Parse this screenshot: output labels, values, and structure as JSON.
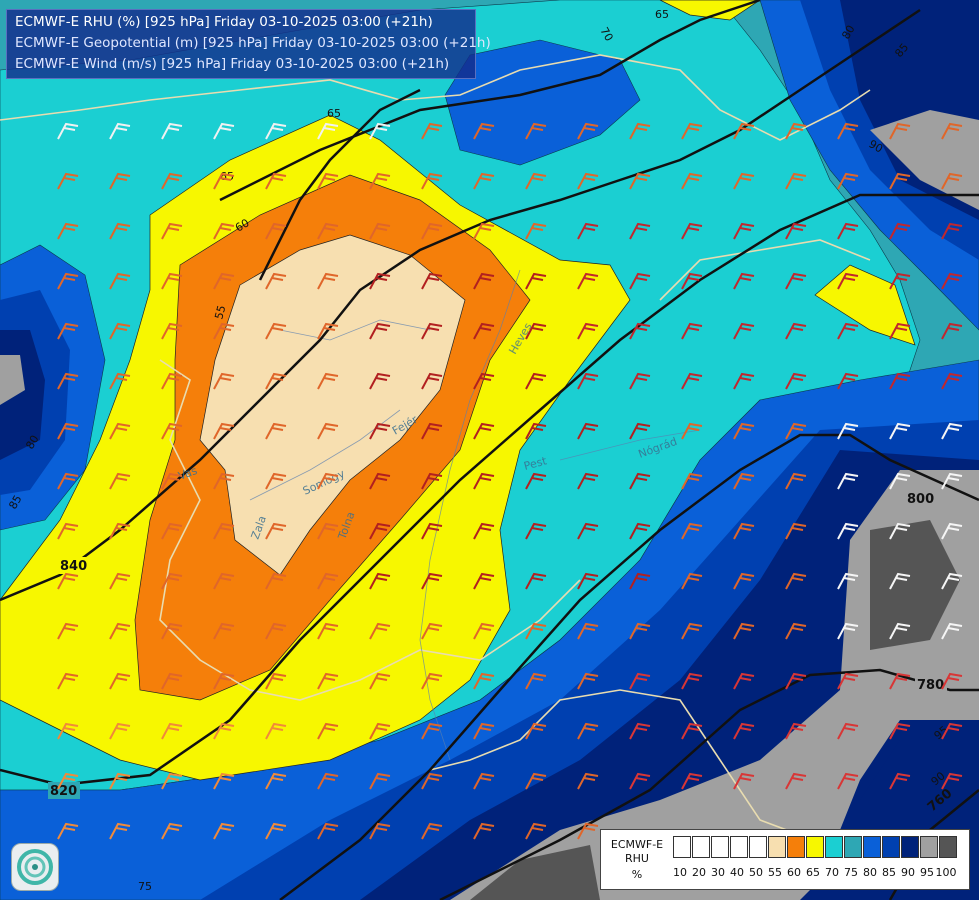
{
  "title": {
    "line1": "ECMWF-E RHU (%) [925 hPa] Friday 03-10-2025 03:00 (+21h)",
    "line2": "ECMWF-E Geopotential (m) [925 hPa] Friday 03-10-2025 03:00 (+21h)",
    "line3": "ECMWF-E Wind (m/s) [925 hPa] Friday 03-10-2025 03:00 (+21h)"
  },
  "legend": {
    "label_line1": "ECMWF-E",
    "label_line2": "RHU",
    "label_line3": "%",
    "ticks": [
      "10",
      "20",
      "30",
      "40",
      "50",
      "55",
      "60",
      "65",
      "70",
      "75",
      "80",
      "85",
      "90",
      "95",
      "100"
    ],
    "colors": [
      "#ffffff",
      "#ffffff",
      "#ffffff",
      "#ffffff",
      "#ffffff",
      "#f7dfb0",
      "#f57f0a",
      "#f7f700",
      "#1bcfd2",
      "#2ea7b4",
      "#0a60d8",
      "#0040b0",
      "#00227a",
      "#a0a0a0",
      "#555555"
    ]
  },
  "geopotential_labels": [
    "840",
    "820",
    "800",
    "780",
    "760"
  ],
  "rhu_contour_labels": [
    "55",
    "60",
    "65",
    "65",
    "70",
    "75",
    "80",
    "80",
    "85",
    "85",
    "90",
    "90",
    "95",
    "65"
  ],
  "place_labels": [
    "Vas",
    "Zala",
    "Somogy",
    "Tolna",
    "Fejér",
    "Pest",
    "Nógrád",
    "Heves"
  ],
  "colors": {
    "rhu_55": "#f7dfb0",
    "rhu_60": "#f57f0a",
    "rhu_65": "#f7f700",
    "rhu_70": "#1bcfd2",
    "rhu_75": "#2ea7b4",
    "rhu_80": "#0a60d8",
    "rhu_85": "#0040b0",
    "rhu_90": "#00227a",
    "rhu_95": "#a0a0a0",
    "rhu_100": "#555555"
  }
}
